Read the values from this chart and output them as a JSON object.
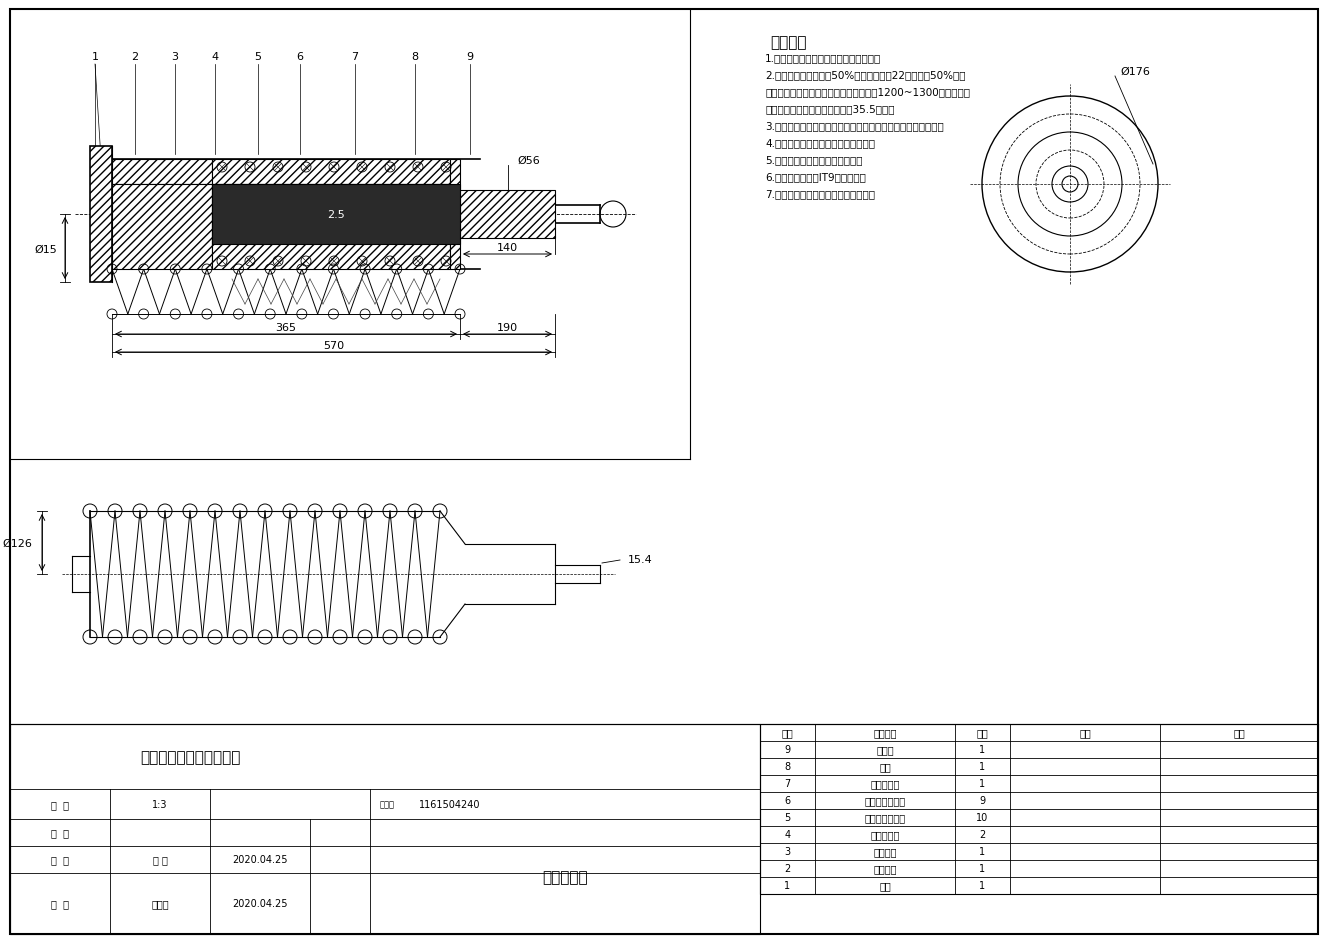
{
  "title": "电磁直线馈能悬架装配图",
  "background_color": "#ffffff",
  "tech_requirements": [
    "技术要求",
    "1.装配前，减震器零件应彻底清洗干净；",
    "2.在减震器内应加注由50%（按重量比）22号平油及50%变压",
    "器油的混合液，在加注前应用每平方厘米1200~1300个孔的金属",
    "网过滤，确保清洁。加注油量为35.5毫升；",
    "3.装置油封时，应注意方向。刃口应光锐无油痕、磕伤等缺陷；",
    "4.装配前所有零件需用煤油进行清洗；",
    "5.装配前应对所有零件进行检查；",
    "6.整机装配精度按IT9进行检验；",
    "7.装配后，需经过测试合格方能使用。"
  ],
  "parts_table": [
    {
      "num": "9",
      "name": "减震器",
      "qty": "1"
    },
    {
      "num": "8",
      "name": "垫环",
      "qty": "1"
    },
    {
      "num": "7",
      "name": "导动器总成",
      "qty": "1"
    },
    {
      "num": "6",
      "name": "轴向磁铁永磁件",
      "qty": "9"
    },
    {
      "num": "5",
      "name": "径向磁铁永磁件",
      "qty": "10"
    },
    {
      "num": "4",
      "name": "内线圈铁圈",
      "qty": "2"
    },
    {
      "num": "3",
      "name": "活杆总成",
      "qty": "1"
    },
    {
      "num": "2",
      "name": "减震弹簧",
      "qty": "1"
    },
    {
      "num": "1",
      "name": "基杆",
      "qty": "1"
    }
  ],
  "table_header": {
    "num": "序号",
    "name": "零件名称",
    "qty": "数量",
    "material": "材料",
    "note": "备注"
  },
  "ratio": "1:3",
  "drawing_num": "1161504240",
  "drawn_by": "王 俏",
  "checked_by": "戴顺图",
  "draw_date": "2020.04.25",
  "check_date": "2020.04.25",
  "school": "淮阴工学院",
  "d15": "Ø15",
  "d56": "Ø56",
  "d176": "Ø176",
  "d126": "Ø126",
  "d25": "2.5",
  "part_labels": [
    "1",
    "2",
    "3",
    "4",
    "5",
    "6",
    "7",
    "8",
    "9"
  ]
}
